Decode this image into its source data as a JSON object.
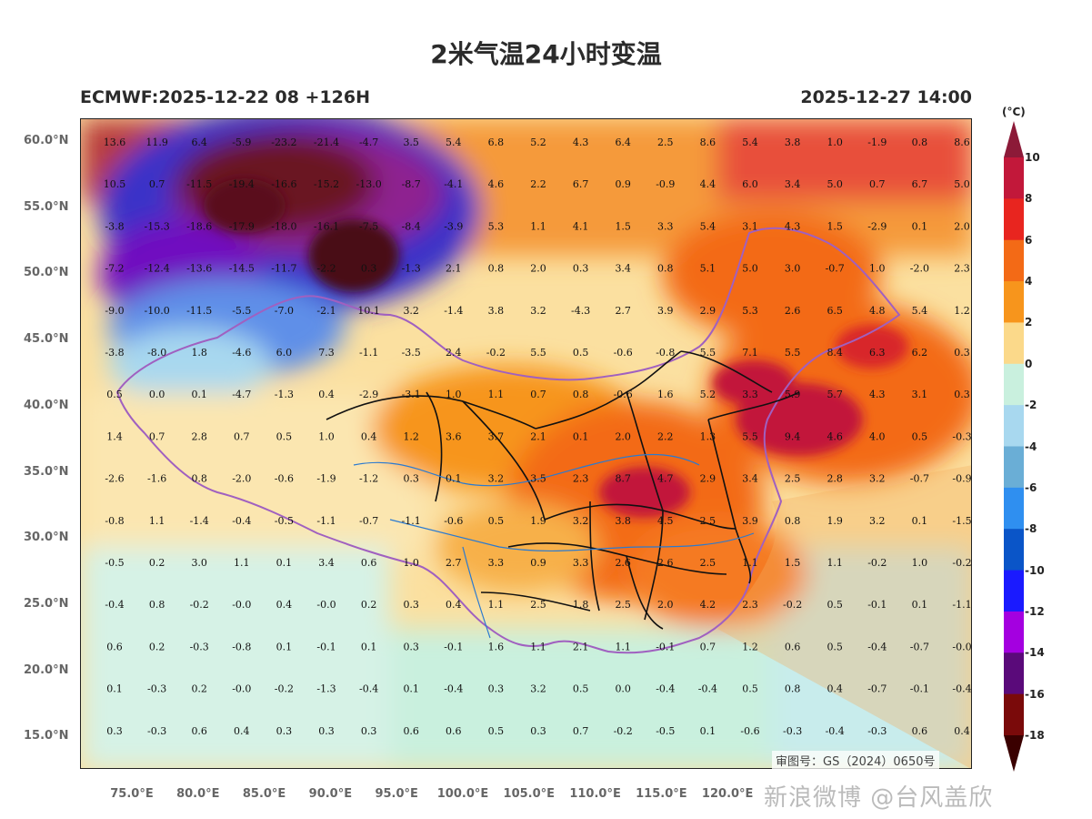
{
  "title": "2米气温24小时变温",
  "model_info": "ECMWF:2025-12-22 08 +126H",
  "valid_time": "2025-12-27 14:00",
  "colorbar": {
    "unit": "(°C)",
    "ticks": [
      "10",
      "8",
      "6",
      "4",
      "2",
      "0",
      "-2",
      "-4",
      "-6",
      "-8",
      "-10",
      "-12",
      "-14",
      "-16",
      "-18"
    ],
    "colors": [
      "#8c1a38",
      "#c2183a",
      "#e8251f",
      "#f36a16",
      "#f7951c",
      "#fbd98a",
      "#c9f0de",
      "#a8d8ef",
      "#6aaed6",
      "#2f8ff0",
      "#0a55c8",
      "#1a1aff",
      "#a400e0",
      "#5a0a7a",
      "#7a0a0a",
      "#3a0000"
    ]
  },
  "lat_labels": [
    "60.0°N",
    "55.0°N",
    "50.0°N",
    "45.0°N",
    "40.0°N",
    "35.0°N",
    "30.0°N",
    "25.0°N",
    "20.0°N",
    "15.0°N"
  ],
  "lon_labels": [
    "75.0°E",
    "80.0°E",
    "85.0°E",
    "90.0°E",
    "95.0°E",
    "100.0°E",
    "105.0°E",
    "110.0°E",
    "115.0°E",
    "120.0°E"
  ],
  "grid_values": [
    [
      "13.6",
      "11.9",
      "6.4",
      "-5.9",
      "-23.2",
      "-21.4",
      "-4.7",
      "3.5",
      "5.4",
      "6.8",
      "5.2",
      "4.3",
      "6.4",
      "2.5",
      "8.6",
      "5.4",
      "3.8",
      "1.0",
      "-1.9",
      "0.8",
      "8.6"
    ],
    [
      "10.5",
      "0.7",
      "-11.5",
      "-19.4",
      "-16.6",
      "-15.2",
      "-13.0",
      "-8.7",
      "-4.1",
      "4.6",
      "2.2",
      "6.7",
      "0.9",
      "-0.9",
      "4.4",
      "6.0",
      "3.4",
      "5.0",
      "0.7",
      "6.7",
      "5.0"
    ],
    [
      "-3.8",
      "-15.3",
      "-18.6",
      "-17.9",
      "-18.0",
      "-16.1",
      "-7.5",
      "-8.4",
      "-3.9",
      "5.3",
      "1.1",
      "4.1",
      "1.5",
      "3.3",
      "5.4",
      "3.1",
      "4.3",
      "1.5",
      "-2.9",
      "0.1",
      "2.0"
    ],
    [
      "-7.2",
      "-12.4",
      "-13.6",
      "-14.5",
      "-11.7",
      "-2.2",
      "0.3",
      "-1.3",
      "2.1",
      "0.8",
      "2.0",
      "0.3",
      "3.4",
      "0.8",
      "5.1",
      "5.0",
      "3.0",
      "-0.7",
      "1.0",
      "-2.0",
      "2.3"
    ],
    [
      "-9.0",
      "-10.0",
      "-11.5",
      "-5.5",
      "-7.0",
      "-2.1",
      "10.1",
      "3.2",
      "-1.4",
      "3.8",
      "3.2",
      "-4.3",
      "2.7",
      "3.9",
      "2.9",
      "5.3",
      "2.6",
      "6.5",
      "4.8",
      "5.4",
      "1.2"
    ],
    [
      "-3.8",
      "-8.0",
      "1.8",
      "-4.6",
      "6.0",
      "7.3",
      "-1.1",
      "-3.5",
      "2.4",
      "-0.2",
      "5.5",
      "0.5",
      "-0.6",
      "-0.8",
      "5.5",
      "7.1",
      "5.5",
      "8.4",
      "6.3",
      "6.2",
      "0.3"
    ],
    [
      "0.5",
      "0.0",
      "0.1",
      "-4.7",
      "-1.3",
      "0.4",
      "-2.9",
      "-3.1",
      "1.0",
      "1.1",
      "0.7",
      "0.8",
      "-0.6",
      "1.6",
      "5.2",
      "3.3",
      "5.9",
      "5.7",
      "4.3",
      "3.1",
      "0.3"
    ],
    [
      "1.4",
      "0.7",
      "2.8",
      "0.7",
      "0.5",
      "1.0",
      "0.4",
      "1.2",
      "3.6",
      "3.7",
      "2.1",
      "0.1",
      "2.0",
      "2.2",
      "1.3",
      "5.5",
      "9.4",
      "4.6",
      "4.0",
      "0.5",
      "-0.3"
    ],
    [
      "-2.6",
      "-1.6",
      "0.8",
      "-2.0",
      "-0.6",
      "-1.9",
      "-1.2",
      "0.3",
      "0.1",
      "3.2",
      "3.5",
      "2.3",
      "8.7",
      "4.7",
      "2.9",
      "3.4",
      "2.5",
      "2.8",
      "3.2",
      "-0.7",
      "-0.9"
    ],
    [
      "-0.8",
      "1.1",
      "-1.4",
      "-0.4",
      "-0.5",
      "-1.1",
      "-0.7",
      "-1.1",
      "-0.6",
      "0.5",
      "1.9",
      "3.2",
      "3.8",
      "4.5",
      "2.5",
      "3.9",
      "0.8",
      "1.9",
      "3.2",
      "0.1",
      "-1.5"
    ],
    [
      "-0.5",
      "0.2",
      "3.0",
      "1.1",
      "0.1",
      "3.4",
      "0.6",
      "1.0",
      "2.7",
      "3.3",
      "0.9",
      "3.3",
      "2.6",
      "2.6",
      "2.5",
      "1.1",
      "1.5",
      "1.1",
      "-0.2",
      "1.0",
      "-0.2"
    ],
    [
      "-0.4",
      "0.8",
      "-0.2",
      "-0.0",
      "0.4",
      "-0.0",
      "0.2",
      "0.3",
      "0.4",
      "1.1",
      "2.5",
      "1.8",
      "2.5",
      "2.0",
      "4.2",
      "2.3",
      "-0.2",
      "0.5",
      "-0.1",
      "0.1",
      "-1.1"
    ],
    [
      "0.6",
      "0.2",
      "-0.3",
      "-0.8",
      "0.1",
      "-0.1",
      "0.1",
      "0.3",
      "-0.1",
      "1.6",
      "1.1",
      "2.1",
      "1.1",
      "-0.1",
      "0.7",
      "1.2",
      "0.6",
      "0.5",
      "-0.4",
      "-0.7",
      "-0.0"
    ],
    [
      "0.1",
      "-0.3",
      "0.2",
      "-0.0",
      "-0.2",
      "-1.3",
      "-0.4",
      "0.1",
      "-0.4",
      "0.3",
      "3.2",
      "0.5",
      "0.0",
      "-0.4",
      "-0.4",
      "0.5",
      "0.8",
      "0.4",
      "-0.7",
      "-0.1",
      "-0.4"
    ],
    [
      "0.3",
      "-0.3",
      "0.6",
      "0.4",
      "0.3",
      "0.3",
      "0.3",
      "0.6",
      "0.6",
      "0.5",
      "0.3",
      "0.7",
      "-0.2",
      "-0.5",
      "0.1",
      "-0.6",
      "-0.3",
      "-0.4",
      "-0.3",
      "0.6",
      "0.4"
    ]
  ],
  "review_number": "审图号：GS（2024）0650号",
  "watermark": "新浪微博 @台风盖欣"
}
